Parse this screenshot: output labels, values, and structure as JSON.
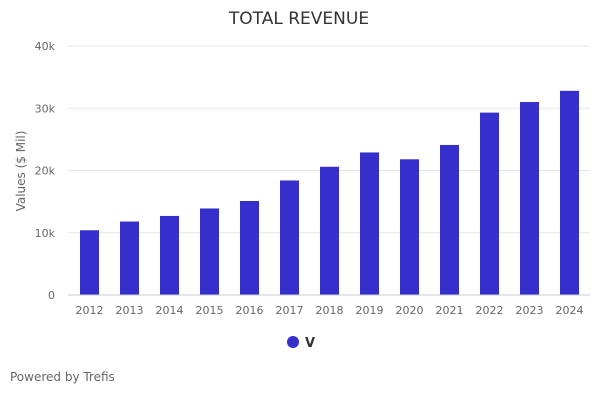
{
  "chart_data": {
    "type": "bar",
    "title": "TOTAL REVENUE",
    "xlabel": "",
    "ylabel": "Values ($ Mil)",
    "categories": [
      "2012",
      "2013",
      "2014",
      "2015",
      "2016",
      "2017",
      "2018",
      "2019",
      "2020",
      "2021",
      "2022",
      "2023",
      "2024"
    ],
    "series": [
      {
        "name": "V",
        "color": "#3530cc",
        "values": [
          10400,
          11800,
          12700,
          13900,
          15100,
          18400,
          20600,
          22900,
          21800,
          24100,
          29300,
          31000,
          32800
        ]
      }
    ],
    "ylim": [
      0,
      40000
    ],
    "yticks": [
      0,
      10000,
      20000,
      30000,
      40000
    ],
    "ytick_labels": [
      "0",
      "10k",
      "20k",
      "30k",
      "40k"
    ],
    "grid": true,
    "legend_position": "bottom-center"
  },
  "footer": {
    "text": "Powered by Trefis"
  }
}
